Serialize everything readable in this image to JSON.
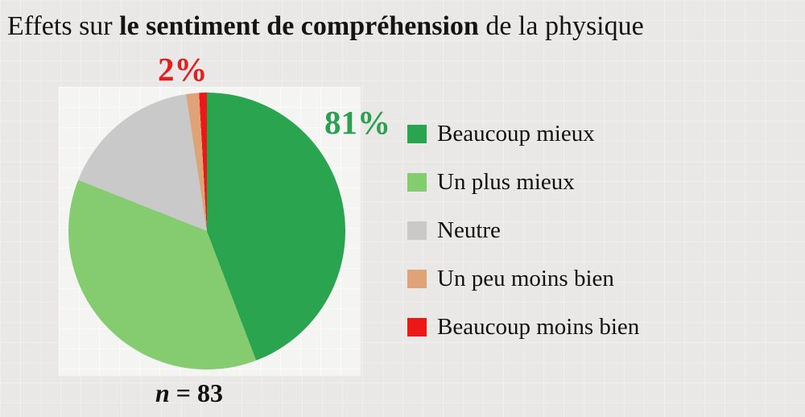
{
  "title": {
    "prefix": "Effets sur ",
    "bold": "le sentiment de compréhension",
    "suffix": " de la physique"
  },
  "annotations": {
    "better": {
      "text": "81%",
      "color": "#2aa050"
    },
    "worse": {
      "text": "2%",
      "color": "#e02020"
    }
  },
  "sample": {
    "n_symbol": "n",
    "rest": " = 83"
  },
  "chart_data": {
    "type": "pie",
    "title": "Effets sur le sentiment de compréhension de la physique",
    "n": 83,
    "legend_position": "right",
    "start_angle_deg": 0,
    "direction": "clockwise",
    "categories": [
      "Beaucoup mieux",
      "Un plus mieux",
      "Neutre",
      "Un peu moins bien",
      "Beaucoup moins bien"
    ],
    "values": [
      44.2,
      36.8,
      16.6,
      1.5,
      0.9
    ],
    "slices": [
      {
        "label": "Beaucoup mieux",
        "value": 44.2,
        "color": "#2aa44f"
      },
      {
        "label": "Un plus mieux",
        "value": 36.8,
        "color": "#85cc70"
      },
      {
        "label": "Neutre",
        "value": 16.6,
        "color": "#c9c9c9"
      },
      {
        "label": "Un peu moins bien",
        "value": 1.5,
        "color": "#dfa377"
      },
      {
        "label": "Beaucoup moins bien",
        "value": 0.9,
        "color": "#ec1717"
      }
    ],
    "displayed_labels": {
      "better_combined": "81%",
      "worse_combined": "2%"
    }
  }
}
